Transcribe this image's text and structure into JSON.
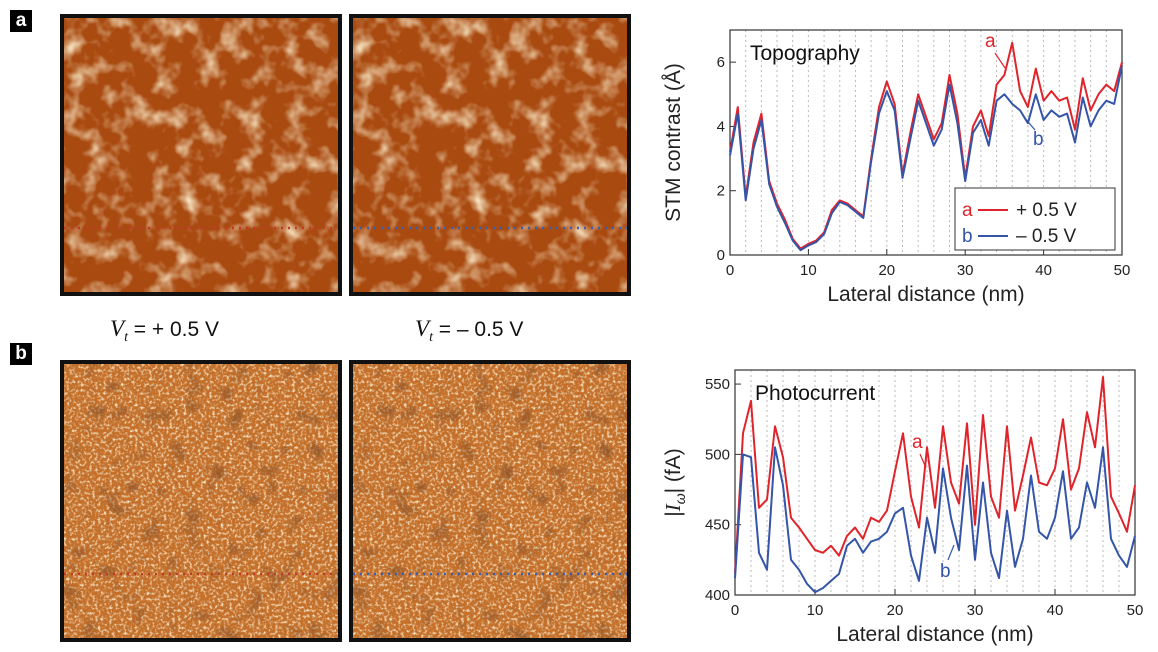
{
  "panels": {
    "a": {
      "tag": "a",
      "image_labels": [
        {
          "prefix": "V",
          "sub": "t",
          "value": "= + 0.5 V"
        },
        {
          "prefix": "V",
          "sub": "t",
          "value": "= – 0.5 V"
        }
      ],
      "line_colors": [
        "#c0392b",
        "#3a5fb0"
      ]
    },
    "b": {
      "tag": "b",
      "line_colors": [
        "#c0392b",
        "#3a5fb0"
      ]
    }
  },
  "colors": {
    "red": "#e0242b",
    "blue": "#3455a8",
    "stm_dark": "#7a2a05",
    "stm_mid": "#c5641a",
    "stm_bright": "#fff1c8"
  },
  "chart_data": [
    {
      "type": "line",
      "title": "Topography",
      "xlabel": "Lateral distance (nm)",
      "ylabel": "STM contrast (Å)",
      "xlim": [
        0,
        50
      ],
      "ylim": [
        0,
        7
      ],
      "xticks": [
        0,
        10,
        20,
        30,
        40,
        50
      ],
      "yticks": [
        0,
        2,
        4,
        6
      ],
      "grid": "vertical dotted",
      "legend_position": "bottom-right",
      "annotations": [
        "a",
        "b"
      ],
      "series": [
        {
          "name": "+ 0.5 V",
          "legend_letter": "a",
          "color": "#e0242b",
          "x": [
            0,
            1,
            2,
            3,
            4,
            5,
            6,
            7,
            8,
            9,
            10,
            11,
            12,
            13,
            14,
            15,
            16,
            17,
            18,
            19,
            20,
            21,
            22,
            23,
            24,
            25,
            26,
            27,
            28,
            29,
            30,
            31,
            32,
            33,
            34,
            35,
            36,
            37,
            38,
            39,
            40,
            41,
            42,
            43,
            44,
            45,
            46,
            47,
            48,
            49,
            50
          ],
          "y": [
            3.2,
            4.6,
            1.8,
            3.5,
            4.4,
            2.3,
            1.6,
            1.1,
            0.5,
            0.2,
            0.35,
            0.45,
            0.7,
            1.4,
            1.7,
            1.6,
            1.4,
            1.2,
            3.0,
            4.6,
            5.4,
            4.7,
            2.5,
            3.8,
            5.0,
            4.3,
            3.6,
            4.1,
            5.6,
            4.4,
            2.4,
            4.0,
            4.5,
            3.7,
            5.3,
            5.6,
            6.6,
            5.1,
            4.6,
            5.8,
            4.8,
            5.1,
            4.8,
            4.9,
            3.9,
            5.5,
            4.5,
            5.0,
            5.3,
            5.1,
            6.0
          ]
        },
        {
          "name": "– 0.5 V",
          "legend_letter": "b",
          "color": "#3455a8",
          "x": [
            0,
            1,
            2,
            3,
            4,
            5,
            6,
            7,
            8,
            9,
            10,
            11,
            12,
            13,
            14,
            15,
            16,
            17,
            18,
            19,
            20,
            21,
            22,
            23,
            24,
            25,
            26,
            27,
            28,
            29,
            30,
            31,
            32,
            33,
            34,
            35,
            36,
            37,
            38,
            39,
            40,
            41,
            42,
            43,
            44,
            45,
            46,
            47,
            48,
            49,
            50
          ],
          "y": [
            3.1,
            4.4,
            1.7,
            3.3,
            4.2,
            2.2,
            1.5,
            1.0,
            0.45,
            0.15,
            0.3,
            0.4,
            0.65,
            1.3,
            1.65,
            1.55,
            1.35,
            1.15,
            2.9,
            4.4,
            5.1,
            4.5,
            2.4,
            3.6,
            4.8,
            4.1,
            3.4,
            3.9,
            5.3,
            4.1,
            2.3,
            3.8,
            4.2,
            3.4,
            4.8,
            5.0,
            4.7,
            4.5,
            4.1,
            5.0,
            4.2,
            4.5,
            4.3,
            4.4,
            3.5,
            4.9,
            4.0,
            4.5,
            4.8,
            4.7,
            5.9
          ]
        }
      ]
    },
    {
      "type": "line",
      "title": "Photocurrent",
      "xlabel": "Lateral distance (nm)",
      "ylabel": "|Iω| (fA)",
      "ylabel_parts": {
        "left": "|",
        "var": "I",
        "sub": "ω",
        "right": "| (fA)"
      },
      "xlim": [
        0,
        50
      ],
      "ylim": [
        400,
        560
      ],
      "xticks": [
        0,
        10,
        20,
        30,
        40,
        50
      ],
      "yticks": [
        400,
        450,
        500,
        550
      ],
      "grid": "vertical dotted",
      "annotations": [
        "a",
        "b"
      ],
      "series": [
        {
          "name": "+ 0.5 V",
          "legend_letter": "a",
          "color": "#e0242b",
          "x": [
            0,
            1,
            2,
            3,
            4,
            5,
            6,
            7,
            8,
            9,
            10,
            11,
            12,
            13,
            14,
            15,
            16,
            17,
            18,
            19,
            20,
            21,
            22,
            23,
            24,
            25,
            26,
            27,
            28,
            29,
            30,
            31,
            32,
            33,
            34,
            35,
            36,
            37,
            38,
            39,
            40,
            41,
            42,
            43,
            44,
            45,
            46,
            47,
            48,
            49,
            50
          ],
          "y": [
            415,
            515,
            538,
            462,
            468,
            520,
            498,
            455,
            448,
            440,
            432,
            430,
            435,
            428,
            442,
            448,
            440,
            455,
            452,
            460,
            488,
            515,
            470,
            448,
            505,
            462,
            520,
            480,
            465,
            522,
            450,
            528,
            470,
            455,
            520,
            460,
            485,
            512,
            480,
            478,
            490,
            525,
            475,
            490,
            530,
            505,
            555,
            470,
            458,
            445,
            478
          ]
        },
        {
          "name": "– 0.5 V",
          "legend_letter": "b",
          "color": "#3455a8",
          "x": [
            0,
            1,
            2,
            3,
            4,
            5,
            6,
            7,
            8,
            9,
            10,
            11,
            12,
            13,
            14,
            15,
            16,
            17,
            18,
            19,
            20,
            21,
            22,
            23,
            24,
            25,
            26,
            27,
            28,
            29,
            30,
            31,
            32,
            33,
            34,
            35,
            36,
            37,
            38,
            39,
            40,
            41,
            42,
            43,
            44,
            45,
            46,
            47,
            48,
            49,
            50
          ],
          "y": [
            412,
            500,
            498,
            430,
            418,
            505,
            478,
            425,
            418,
            408,
            402,
            405,
            410,
            415,
            435,
            440,
            430,
            438,
            440,
            445,
            458,
            462,
            428,
            410,
            455,
            430,
            490,
            455,
            432,
            492,
            425,
            480,
            430,
            412,
            460,
            420,
            440,
            485,
            445,
            440,
            455,
            488,
            440,
            448,
            480,
            462,
            505,
            440,
            428,
            420,
            442
          ]
        }
      ]
    }
  ]
}
